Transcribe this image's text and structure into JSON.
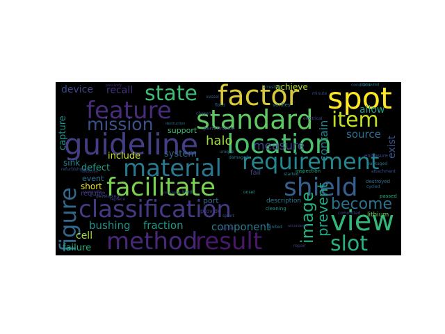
{
  "wordcloud": {
    "words": [
      {
        "text": "factor",
        "color": "#d9c83a"
      },
      {
        "text": "spot",
        "color": "#fde725"
      },
      {
        "text": "standard",
        "color": "#5ec962"
      },
      {
        "text": "state",
        "color": "#3fbc73"
      },
      {
        "text": "feature",
        "color": "#472c7a"
      },
      {
        "text": "item",
        "color": "#c2df23"
      },
      {
        "text": "mission",
        "color": "#3b528b"
      },
      {
        "text": "guideline",
        "color": "#433e85"
      },
      {
        "text": "location",
        "color": "#4ac16d"
      },
      {
        "text": "material",
        "color": "#2a788e"
      },
      {
        "text": "requirement",
        "color": "#24868e"
      },
      {
        "text": "facilitate",
        "color": "#7ad151"
      },
      {
        "text": "shield",
        "color": "#355f8d"
      },
      {
        "text": "figure",
        "color": "#31688e"
      },
      {
        "text": "classification",
        "color": "#443983"
      },
      {
        "text": "view",
        "color": "#34b679"
      },
      {
        "text": "become",
        "color": "#2c728e"
      },
      {
        "text": "method",
        "color": "#482878"
      },
      {
        "text": "result",
        "color": "#48186a"
      },
      {
        "text": "slot",
        "color": "#2ab07f"
      },
      {
        "text": "image",
        "color": "#29af7f"
      },
      {
        "text": "prevent",
        "color": "#22a785"
      },
      {
        "text": "contain",
        "color": "#26828e"
      },
      {
        "text": "halo",
        "color": "#9fda3a"
      },
      {
        "text": "measure",
        "color": "#3e4a89"
      },
      {
        "text": "source",
        "color": "#2d708e"
      },
      {
        "text": "allow",
        "color": "#1f9e89"
      },
      {
        "text": "exist",
        "color": "#3b528b"
      },
      {
        "text": "device",
        "color": "#3f4788"
      },
      {
        "text": "recall",
        "color": "#46337e"
      },
      {
        "text": "achieve",
        "color": "#b5de2b"
      },
      {
        "text": "capture",
        "color": "#21918c"
      },
      {
        "text": "sink",
        "color": "#25858e"
      },
      {
        "text": "include",
        "color": "#c8e020"
      },
      {
        "text": "system",
        "color": "#31688e"
      },
      {
        "text": "defect",
        "color": "#1fa187"
      },
      {
        "text": "event",
        "color": "#2c728e"
      },
      {
        "text": "short",
        "color": "#e5e419"
      },
      {
        "text": "require",
        "color": "#433e85"
      },
      {
        "text": "bushing",
        "color": "#21918c"
      },
      {
        "text": "fraction",
        "color": "#1f9a8a"
      },
      {
        "text": "component",
        "color": "#2a788e"
      },
      {
        "text": "cell",
        "color": "#a2da37"
      },
      {
        "text": "failure",
        "color": "#27ad81"
      },
      {
        "text": "support",
        "color": "#3bbb75"
      },
      {
        "text": "refurbishment",
        "color": "#3b528b"
      },
      {
        "text": "port",
        "color": "#31688e"
      },
      {
        "text": "fail",
        "color": "#3e4989"
      },
      {
        "text": "description",
        "color": "#2a788e"
      },
      {
        "text": "inspection",
        "color": "#25ab82"
      },
      {
        "text": "lithium",
        "color": "#6ece58"
      },
      {
        "text": "destroyed",
        "color": "#2c728e"
      },
      {
        "text": "cycled",
        "color": "#31688e"
      },
      {
        "text": "passed",
        "color": "#2ab07f"
      },
      {
        "text": "committed",
        "color": "#414487"
      },
      {
        "text": "cleaning",
        "color": "#21918c"
      },
      {
        "text": "packaged",
        "color": "#2c728e"
      },
      {
        "text": "enclosure",
        "color": "#3e4989"
      },
      {
        "text": "provide",
        "color": "#433e85"
      },
      {
        "text": "verifies",
        "color": "#26828e"
      },
      {
        "text": "chosen",
        "color": "#3b528b"
      },
      {
        "text": "arresting",
        "color": "#2d708e"
      },
      {
        "text": "condition",
        "color": "#31688e"
      },
      {
        "text": "performance",
        "color": "#443983"
      },
      {
        "text": "developing",
        "color": "#3e4a89"
      },
      {
        "text": "passively",
        "color": "#472d7b"
      },
      {
        "text": "marginally",
        "color": "#453781"
      },
      {
        "text": "minimal",
        "color": "#3f4788"
      },
      {
        "text": "vessel",
        "color": "#355f8d"
      },
      {
        "text": "unique",
        "color": "#2c728e"
      },
      {
        "text": "onset",
        "color": "#21918c"
      },
      {
        "text": "spent",
        "color": "#3b528b"
      },
      {
        "text": "started",
        "color": "#26828e"
      },
      {
        "text": "damaged",
        "color": "#2a788e"
      },
      {
        "text": "repair",
        "color": "#3e4989"
      },
      {
        "text": "replace",
        "color": "#433e85"
      },
      {
        "text": "kind",
        "color": "#2d708e"
      },
      {
        "text": "flood",
        "color": "#31688e"
      },
      {
        "text": "minute",
        "color": "#3b528b"
      },
      {
        "text": "electrical",
        "color": "#3e4a89"
      },
      {
        "text": "resolution",
        "color": "#3f4788"
      },
      {
        "text": "destruction",
        "color": "#2c728e"
      },
      {
        "text": "computed",
        "color": "#24868e"
      },
      {
        "text": "accordance",
        "color": "#433e85"
      },
      {
        "text": "ignited",
        "color": "#2a788e"
      },
      {
        "text": "regular",
        "color": "#453781"
      },
      {
        "text": "attachment",
        "color": "#3b528b"
      }
    ]
  }
}
